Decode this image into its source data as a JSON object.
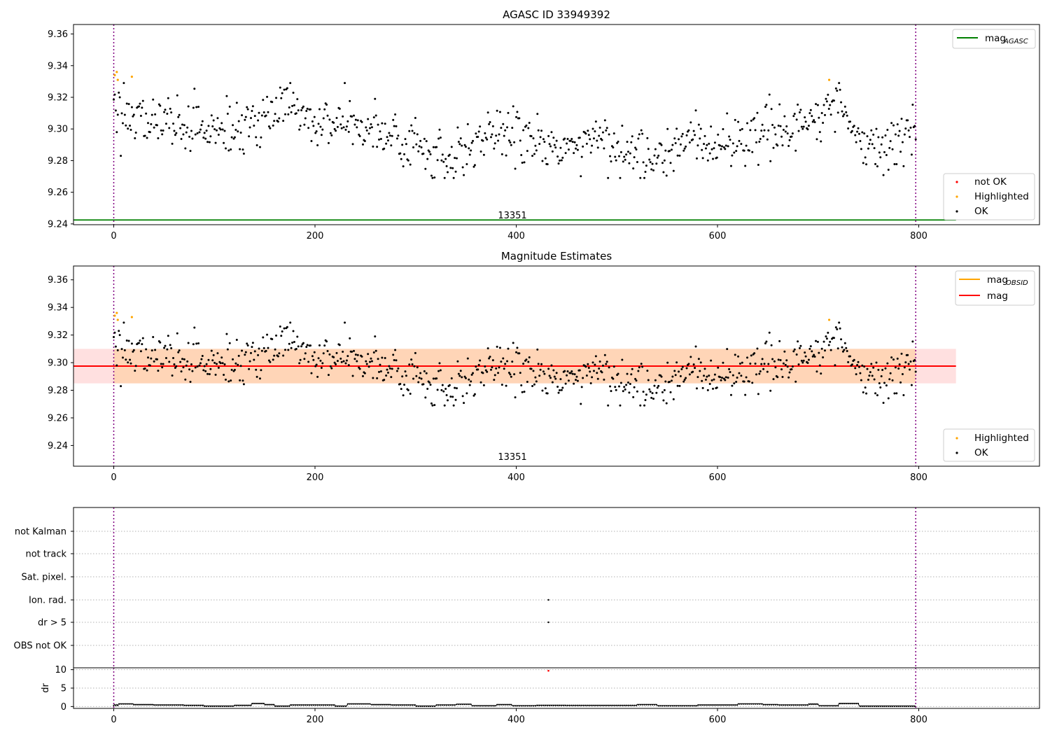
{
  "chart_data": [
    {
      "type": "scatter",
      "title": "AGASC ID 33949392",
      "xlim": [
        -40,
        920
      ],
      "ylim": [
        9.2395,
        9.366
      ],
      "xticks": [
        0,
        200,
        400,
        600,
        800
      ],
      "yticks": [
        9.24,
        9.26,
        9.28,
        9.3,
        9.32,
        9.34,
        9.36
      ],
      "ytick_labels": [
        "9.24",
        "9.26",
        "9.28",
        "9.30",
        "9.32",
        "9.34",
        "9.36"
      ],
      "vlines": [
        0,
        797
      ],
      "obsid_label": "13351",
      "obsid_label_x": 400,
      "mag_agasc": 9.2425,
      "mag_agasc_x": [
        -40,
        837
      ],
      "grid": false,
      "legend_lines": [
        {
          "name": "mag",
          "sub": "AGASC",
          "color": "#008000"
        }
      ],
      "legend_points": [
        {
          "name": "not OK",
          "color": "#ff0000"
        },
        {
          "name": "Highlighted",
          "color": "#ffa500"
        },
        {
          "name": "OK",
          "color": "#000000"
        }
      ],
      "n_points": 796,
      "mean": 9.2975,
      "highlighted": [
        [
          1,
          9.334
        ],
        [
          3,
          9.336
        ],
        [
          4,
          9.331
        ],
        [
          18,
          9.333
        ],
        [
          711,
          9.331
        ]
      ]
    },
    {
      "type": "scatter",
      "title": "Magnitude Estimates",
      "xlim": [
        -40,
        920
      ],
      "ylim": [
        9.225,
        9.37
      ],
      "xticks": [
        0,
        200,
        400,
        600,
        800
      ],
      "yticks": [
        9.24,
        9.26,
        9.28,
        9.3,
        9.32,
        9.34,
        9.36
      ],
      "ytick_labels": [
        "9.24",
        "9.26",
        "9.28",
        "9.30",
        "9.32",
        "9.34",
        "9.36"
      ],
      "vlines": [
        0,
        797
      ],
      "obsid_label": "13351",
      "obsid_label_x": 400,
      "mag_obsid": 9.2975,
      "mag_obsid_band": [
        9.285,
        9.31
      ],
      "mag": 9.2975,
      "mag_band": [
        9.285,
        9.31
      ],
      "mag_x": [
        -40,
        837
      ],
      "grid": false,
      "legend_lines": [
        {
          "name": "mag",
          "sub": "OBSID",
          "color": "#ffa500"
        },
        {
          "name": "mag",
          "sub": "",
          "color": "#ff0000"
        }
      ],
      "legend_points": [
        {
          "name": "Highlighted",
          "color": "#ffa500"
        },
        {
          "name": "OK",
          "color": "#000000"
        }
      ]
    },
    {
      "type": "scatter",
      "xlim": [
        -40,
        920
      ],
      "categories": [
        "not Kalman",
        "not track",
        "Sat. pixel.",
        "Ion. rad.",
        "dr > 5",
        "OBS not OK"
      ],
      "flag_points": [
        {
          "category": "Ion. rad.",
          "x": 432
        },
        {
          "category": "dr > 5",
          "x": 432
        }
      ],
      "vlines": [
        0,
        797
      ],
      "grid": "dotted"
    },
    {
      "type": "line",
      "ylabel": "dr",
      "xlim": [
        -40,
        920
      ],
      "ylim": [
        -0.5,
        10.5
      ],
      "yticks": [
        0,
        5,
        10
      ],
      "xticks": [
        0,
        200,
        400,
        600,
        800
      ],
      "vlines": [
        0,
        797
      ],
      "dr_outlier": [
        432,
        9.7
      ],
      "dr_segments": [
        [
          0,
          0.3,
          0.6
        ],
        [
          5,
          0.7,
          0.8
        ],
        [
          20,
          0.5,
          0.6
        ],
        [
          40,
          0.4,
          0.5
        ],
        [
          70,
          0.3,
          0.4
        ],
        [
          90,
          0.1,
          0.2
        ],
        [
          120,
          0.3,
          0.4
        ],
        [
          137,
          0.8,
          0.9
        ],
        [
          150,
          0.5,
          0.6
        ],
        [
          160,
          0.1,
          0.2
        ],
        [
          175,
          0.4,
          0.5
        ],
        [
          220,
          0.1,
          0.2
        ],
        [
          232,
          0.7,
          0.8
        ],
        [
          255,
          0.5,
          0.6
        ],
        [
          275,
          0.4,
          0.5
        ],
        [
          300,
          0.1,
          0.2
        ],
        [
          320,
          0.4,
          0.5
        ],
        [
          340,
          0.6,
          0.7
        ],
        [
          355,
          0.2,
          0.3
        ],
        [
          380,
          0.5,
          0.6
        ],
        [
          395,
          0.2,
          0.3
        ],
        [
          420,
          0.3,
          0.4
        ],
        [
          450,
          0.3,
          0.3
        ],
        [
          520,
          0.5,
          0.6
        ],
        [
          540,
          0.2,
          0.3
        ],
        [
          580,
          0.4,
          0.5
        ],
        [
          620,
          0.7,
          0.8
        ],
        [
          645,
          0.5,
          0.6
        ],
        [
          660,
          0.4,
          0.5
        ],
        [
          690,
          0.6,
          0.8
        ],
        [
          700,
          0.2,
          0.3
        ],
        [
          720,
          0.8,
          0.9
        ],
        [
          740,
          0.1,
          0.2
        ],
        [
          797,
          0.1,
          0.1
        ]
      ]
    }
  ]
}
